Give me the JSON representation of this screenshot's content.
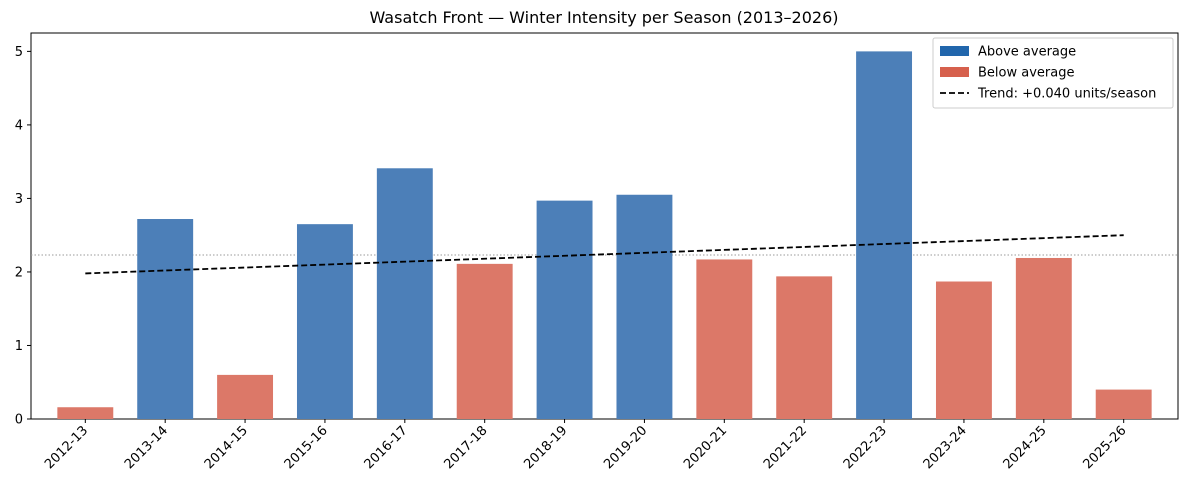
{
  "chart_data": {
    "type": "bar",
    "title": "Wasatch Front — Winter Intensity per Season (2013–2026)",
    "xlabel": "",
    "ylabel": "",
    "categories": [
      "2012-13",
      "2013-14",
      "2014-15",
      "2015-16",
      "2016-17",
      "2017-18",
      "2018-19",
      "2019-20",
      "2020-21",
      "2021-22",
      "2022-23",
      "2023-24",
      "2024-25",
      "2025-26"
    ],
    "values": [
      0.16,
      2.72,
      0.6,
      2.65,
      3.41,
      2.11,
      2.97,
      3.05,
      2.17,
      1.94,
      5.0,
      1.87,
      2.19,
      0.4
    ],
    "groups": [
      "below",
      "above",
      "below",
      "above",
      "above",
      "below",
      "above",
      "above",
      "below",
      "below",
      "above",
      "below",
      "below",
      "below"
    ],
    "ylim": [
      0,
      5.25
    ],
    "yticks": [
      0,
      1,
      2,
      3,
      4,
      5
    ],
    "average_line": 2.23,
    "trend": {
      "start": 1.98,
      "end": 2.5,
      "label": "Trend: +0.040 units/season"
    },
    "legend": {
      "position": "top-right",
      "entries": [
        {
          "key": "above",
          "label": "Above average"
        },
        {
          "key": "below",
          "label": "Below average"
        },
        {
          "key": "trend",
          "label": "Trend: +0.040 units/season"
        }
      ]
    },
    "colors": {
      "above": "#4C7FB8",
      "above_legend": "#2166AC",
      "below": "#DC7868",
      "below_legend": "#D6604D",
      "trend": "#000000",
      "average": "#999999"
    },
    "grid": false
  }
}
